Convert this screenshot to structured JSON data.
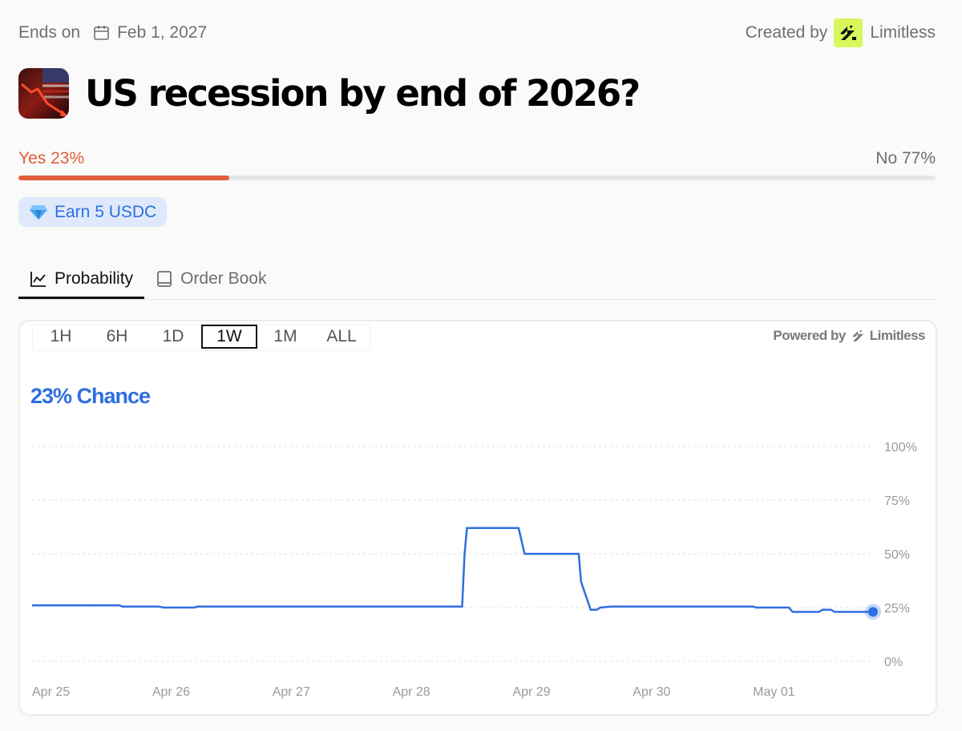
{
  "header": {
    "ends_label": "Ends on",
    "end_date": "Feb 1, 2027",
    "created_by_label": "Created by",
    "creator_name": "Limitless"
  },
  "market": {
    "title": "US recession by end of 2026?",
    "yes_label": "Yes 23%",
    "no_label": "No 77%",
    "yes_fraction": 0.23,
    "earn_label": "Earn 5 USDC"
  },
  "tabs": [
    {
      "label": "Probability",
      "active": true,
      "icon": "line-chart-icon"
    },
    {
      "label": "Order Book",
      "active": false,
      "icon": "book-icon"
    }
  ],
  "chart_panel": {
    "ranges": [
      "1H",
      "6H",
      "1D",
      "1W",
      "1M",
      "ALL"
    ],
    "active_range": "1W",
    "powered_by_label": "Powered by",
    "powered_by_brand": "Limitless",
    "chance_label": "23% Chance"
  },
  "chart_data": {
    "type": "line",
    "title": "",
    "xlabel": "",
    "ylabel": "",
    "x_ticks": [
      "Apr 25",
      "Apr 26",
      "Apr 27",
      "Apr 28",
      "Apr 29",
      "Apr 30",
      "May 01"
    ],
    "y_ticks": [
      "100%",
      "75%",
      "50%",
      "25%",
      "0%"
    ],
    "ylim": [
      0,
      100
    ],
    "xlim": [
      0,
      7.0
    ],
    "grid": true,
    "line_color": "#2d6fe0",
    "series": [
      {
        "x": [
          0,
          0.73,
          0.75,
          1.05,
          1.1,
          1.35,
          1.38,
          3.58,
          3.6,
          3.62,
          4.05,
          4.1,
          4.55,
          4.57,
          4.65,
          4.7,
          4.73,
          4.82,
          6.0,
          6.03,
          6.3,
          6.33,
          6.55,
          6.58,
          6.65,
          6.68,
          7.0
        ],
        "y": [
          26,
          26,
          25.5,
          25.5,
          25,
          25,
          25.5,
          25.5,
          50,
          62,
          62,
          50,
          50,
          37,
          24,
          24,
          25,
          25.5,
          25.5,
          25,
          25,
          23,
          23,
          24,
          24,
          23,
          23
        ]
      }
    ],
    "current_value": 23
  }
}
